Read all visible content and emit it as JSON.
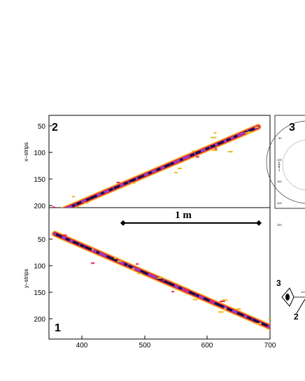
{
  "panels": {
    "top": {
      "number": "2",
      "ylabel": "x–strips",
      "yticks": [
        "50",
        "100",
        "150",
        "200"
      ],
      "track": {
        "x_start": 355,
        "y_start": 216,
        "x_end": 682,
        "y_end": 52
      }
    },
    "bottom": {
      "number": "1",
      "ylabel": "y–strips",
      "yticks": [
        "50",
        "100",
        "150",
        "200"
      ],
      "track": {
        "x_start": 357,
        "y_start": 40,
        "x_end": 702,
        "y_end": 216
      }
    },
    "side": {
      "number": "3",
      "ylabel": "x–strips",
      "yticks": [
        "50",
        "100",
        "150",
        "200",
        "250"
      ]
    }
  },
  "xaxis": {
    "ticks": [
      "400",
      "500",
      "600",
      "700"
    ],
    "range": [
      350,
      700
    ]
  },
  "yaxis_range": [
    30,
    235
  ],
  "scale_bar": {
    "label": "1 m"
  },
  "detector_diagram": {
    "labels": [
      "3",
      "2"
    ]
  },
  "colors": {
    "track_outer": "#f0b81c",
    "track_mid": "#e8204c",
    "track_inner": "#9040c8",
    "track_core": "#101040"
  }
}
